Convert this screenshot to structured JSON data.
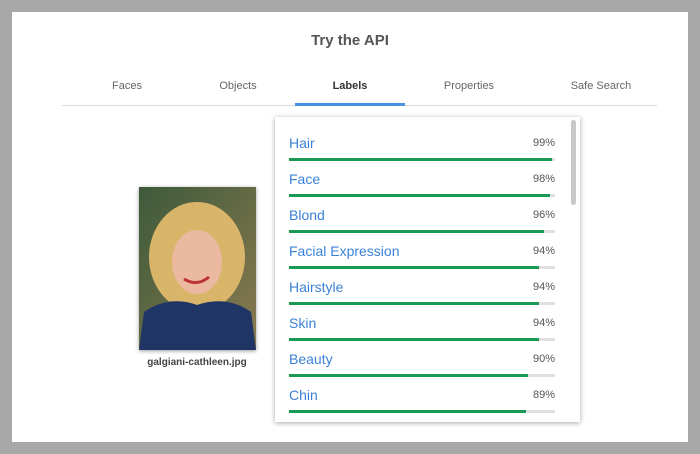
{
  "header": {
    "title": "Try the API"
  },
  "tabs": {
    "items": [
      "Faces",
      "Objects",
      "Labels",
      "Properties",
      "Safe Search"
    ],
    "active": "Labels"
  },
  "image": {
    "caption": "galgiani-cathleen.jpg"
  },
  "labels": [
    {
      "name": "Hair",
      "value": 99,
      "value_label": "99%"
    },
    {
      "name": "Face",
      "value": 98,
      "value_label": "98%"
    },
    {
      "name": "Blond",
      "value": 96,
      "value_label": "96%"
    },
    {
      "name": "Facial Expression",
      "value": 94,
      "value_label": "94%"
    },
    {
      "name": "Hairstyle",
      "value": 94,
      "value_label": "94%"
    },
    {
      "name": "Skin",
      "value": 94,
      "value_label": "94%"
    },
    {
      "name": "Beauty",
      "value": 90,
      "value_label": "90%"
    },
    {
      "name": "Chin",
      "value": 89,
      "value_label": "89%"
    }
  ]
}
